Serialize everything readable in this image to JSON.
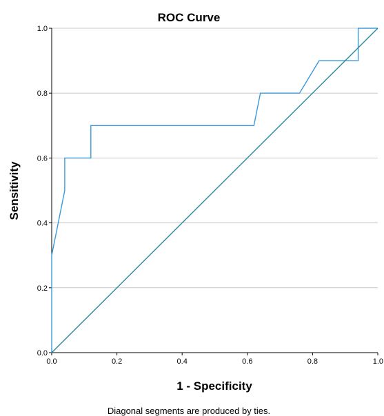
{
  "chart_data": {
    "type": "line",
    "title": "ROC Curve",
    "xlabel": "1 - Specificity",
    "ylabel": "Sensitivity",
    "footnote": "Diagonal segments are produced by ties.",
    "xlim": [
      0,
      1
    ],
    "ylim": [
      0,
      1
    ],
    "x_ticks": [
      0.0,
      0.2,
      0.4,
      0.6,
      0.8,
      1.0
    ],
    "y_ticks": [
      0.0,
      0.2,
      0.4,
      0.6,
      0.8,
      1.0
    ],
    "x_tick_labels": [
      "0.0",
      "0.2",
      "0.4",
      "0.6",
      "0.8",
      "1.0"
    ],
    "y_tick_labels": [
      "0.0",
      "0.2",
      "0.4",
      "0.6",
      "0.8",
      "1.0"
    ],
    "grid": "horizontal",
    "series": [
      {
        "role": "roc",
        "color": "#3a9ad9",
        "x": [
          0.0,
          0.0,
          0.04,
          0.04,
          0.12,
          0.12,
          0.62,
          0.64,
          0.76,
          0.82,
          0.94,
          0.94,
          1.0
        ],
        "y": [
          0.0,
          0.3,
          0.5,
          0.6,
          0.6,
          0.7,
          0.7,
          0.8,
          0.8,
          0.9,
          0.9,
          1.0,
          1.0
        ]
      },
      {
        "role": "reference",
        "color": "#2a8aa0",
        "x": [
          0.0,
          1.0
        ],
        "y": [
          0.0,
          1.0
        ]
      }
    ]
  }
}
